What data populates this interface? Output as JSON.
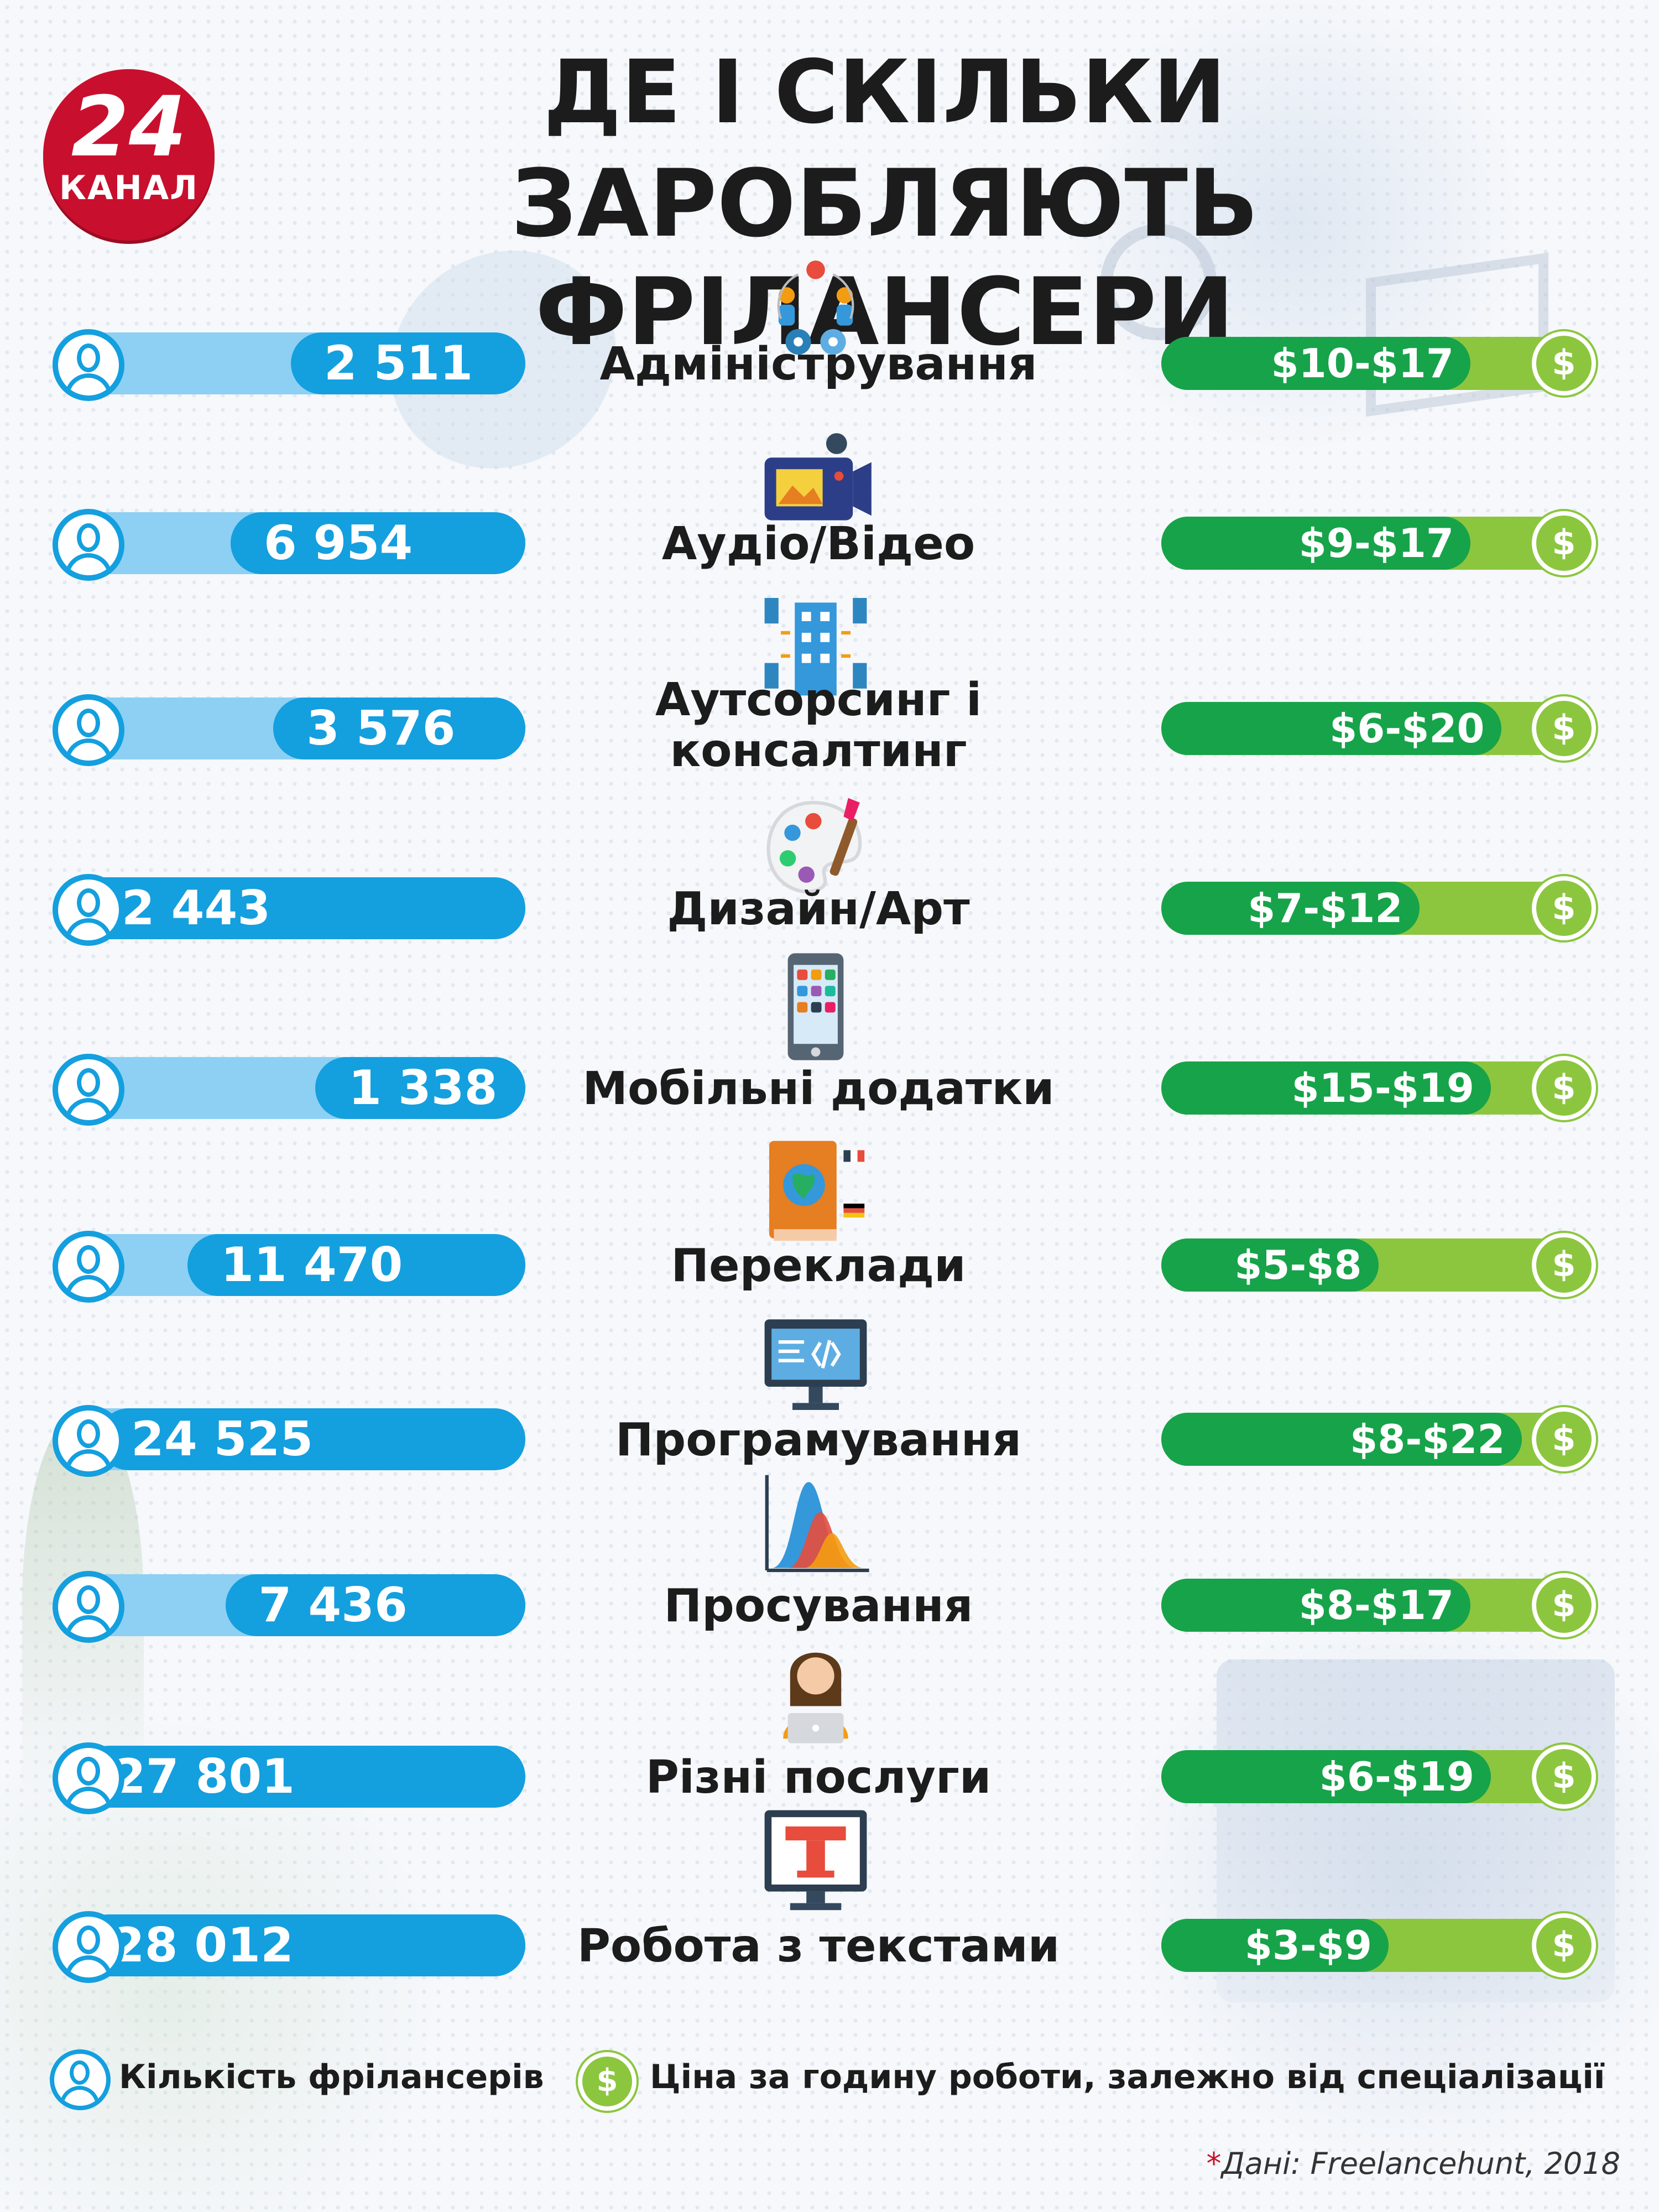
{
  "brand": {
    "number": "24",
    "label": "КАНАЛ"
  },
  "title": {
    "line1": "ДЕ І СКІЛЬКИ",
    "line2": "ЗАРОБЛЯЮТЬ ФРІЛАНСЕРИ"
  },
  "colors": {
    "freelancers_bar": "#149fdf",
    "freelancers_track": "#8dd0f3",
    "rate_bar": "#17a34a",
    "rate_track": "#8cc63f",
    "brand_red": "#c8102e"
  },
  "chart_data": {
    "type": "bar",
    "categories": [
      "Адміністрування",
      "Аудіо/Відео",
      "Аутсорсинг і\nконсалтинг",
      "Дизайн/Арт",
      "Мобільні додатки",
      "Переклади",
      "Програмування",
      "Просування",
      "Різні послуги",
      "Робота з текстами"
    ],
    "series": [
      {
        "name": "Кількість фрілансерів",
        "values": [
          2511,
          6954,
          3576,
          32443,
          1338,
          11470,
          24525,
          7436,
          27801,
          28012
        ],
        "labels": [
          "2 511",
          "6 954",
          "3 576",
          "32 443",
          "1 338",
          "11 470",
          "24 525",
          "7 436",
          "27 801",
          "28 012"
        ]
      },
      {
        "name": "Ціна за годину роботи, залежно від спеціалізації",
        "min": [
          10,
          9,
          6,
          7,
          15,
          5,
          8,
          8,
          6,
          3
        ],
        "max": [
          17,
          17,
          20,
          12,
          19,
          8,
          22,
          17,
          19,
          9
        ],
        "labels": [
          "$10-$17",
          "$9-$17",
          "$6-$20",
          "$7-$12",
          "$15-$19",
          "$5-$8",
          "$8-$22",
          "$8-$17",
          "$6-$19",
          "$3-$9"
        ]
      }
    ],
    "icons": [
      "team-gears-icon",
      "video-camera-icon",
      "office-building-icon",
      "palette-icon",
      "smartphone-icon",
      "book-globe-icon",
      "code-monitor-icon",
      "chart-peaks-icon",
      "woman-laptop-icon",
      "text-monitor-icon"
    ]
  },
  "legend": {
    "freelancers": "Кількість фрілансерів",
    "rate": "Ціна за годину роботи, залежно від спеціалізації",
    "dollar_symbol": "$"
  },
  "source": {
    "asterisk": "*",
    "text": "Дані: Freelancehunt, 2018"
  }
}
